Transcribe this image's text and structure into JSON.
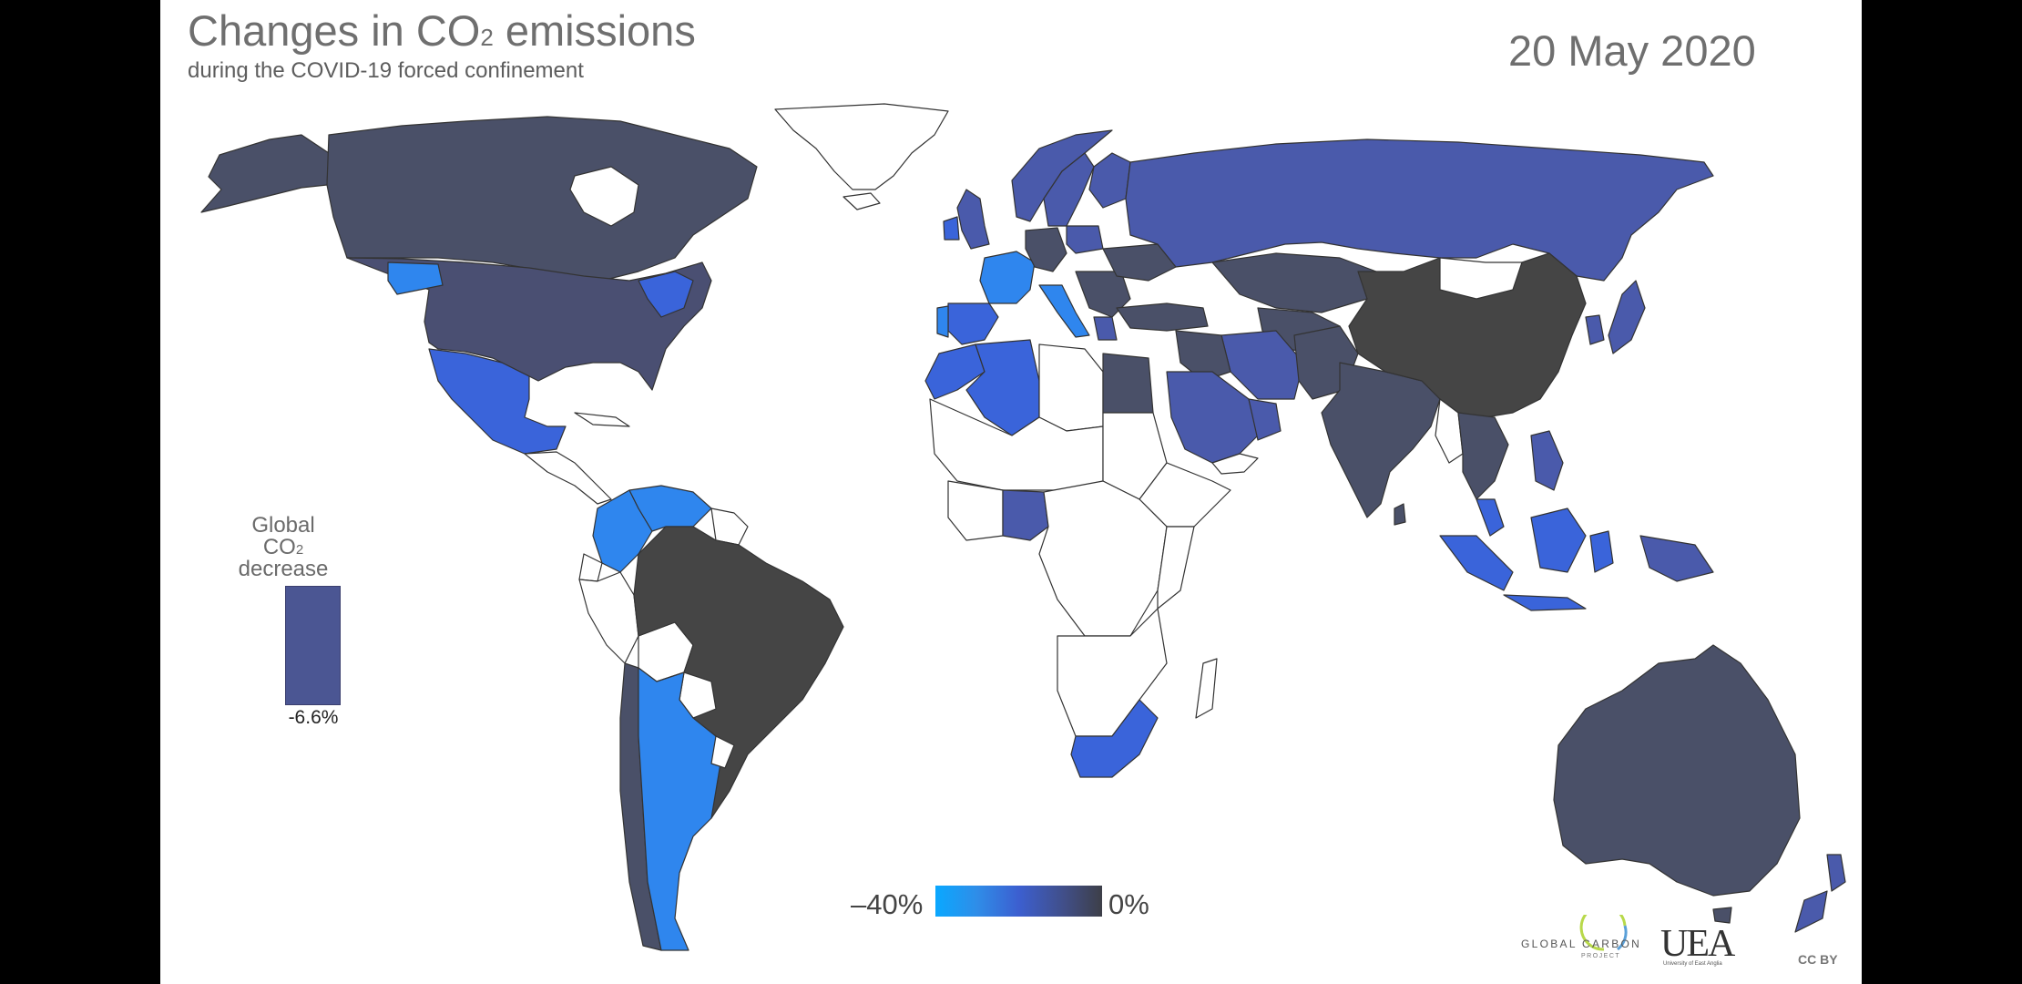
{
  "header": {
    "title_main": "Changes in CO",
    "title_sub": "2",
    "title_end": " emissions",
    "subtitle": "during the COVID-19 forced confinement",
    "date": "20 May 2020"
  },
  "global_indicator": {
    "label_line1": "Global CO",
    "label_sub": "2",
    "label_line2": "decrease",
    "value": "-6.6%",
    "value_fraction": -0.066,
    "color": "#4b5693"
  },
  "color_scale": {
    "min_label": "–40%",
    "max_label": "0%",
    "min_color": "#0aa8ff",
    "max_color": "#3d3f48"
  },
  "colors": {
    "no_data": "#ffffff",
    "border": "#333333",
    "darkest": "#454545",
    "dark_slate": "#4a5068",
    "slate_blue": "#4a5aab",
    "mid_blue": "#3a64da",
    "bright_blue": "#2f86ee"
  },
  "logos": {
    "gcp": "GLOBAL CARBON",
    "gcp_sub": "PROJECT",
    "uea": "UEA",
    "uea_sub": "University of East Anglia",
    "license": "CC BY"
  }
}
